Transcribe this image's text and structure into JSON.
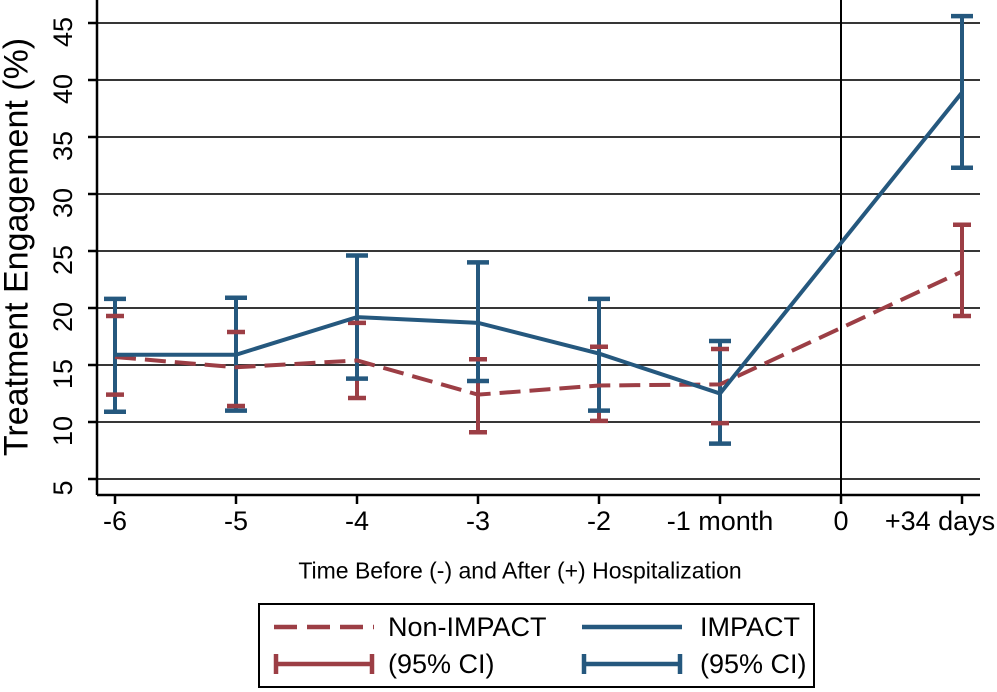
{
  "chart_data": {
    "type": "line",
    "title": "",
    "xlabel": "Time Before (-) and After (+) Hospitalization",
    "ylabel": "Treatment Engagement (%)",
    "x_tick_labels": [
      "-6",
      "-5",
      "-4",
      "-3",
      "-2",
      "-1 month",
      "0",
      "+34 days"
    ],
    "y_ticks": [
      5,
      10,
      15,
      20,
      25,
      30,
      35,
      40,
      45
    ],
    "ylim": [
      3.6,
      47
    ],
    "grid": "horizontal",
    "reference_line_x_index": 6,
    "colors": {
      "non_impact": "#9C3E45",
      "impact": "#25587E",
      "gridline": "#1a1a1a",
      "axis": "#000000"
    },
    "series": [
      {
        "name": "Non-IMPACT",
        "style": "dashed",
        "color": "#9C3E45",
        "x_indices": [
          0,
          1,
          2,
          3,
          4,
          5,
          7
        ],
        "values": [
          15.7,
          14.8,
          15.4,
          12.4,
          13.2,
          13.3,
          23.2
        ],
        "ci_low": [
          12.4,
          11.4,
          12.1,
          9.1,
          10.1,
          9.9,
          19.3
        ],
        "ci_high": [
          19.3,
          17.9,
          18.7,
          15.5,
          16.6,
          16.4,
          27.3
        ]
      },
      {
        "name": "IMPACT",
        "style": "solid",
        "color": "#25587E",
        "x_indices": [
          0,
          1,
          2,
          3,
          4,
          5,
          7
        ],
        "values": [
          15.9,
          15.9,
          19.2,
          18.7,
          16.0,
          12.5,
          38.9
        ],
        "ci_low": [
          10.9,
          11.0,
          13.8,
          13.6,
          11.0,
          8.1,
          32.3
        ],
        "ci_high": [
          20.8,
          20.9,
          24.6,
          24.0,
          20.8,
          17.1,
          45.6
        ]
      }
    ],
    "legend": {
      "position": "bottom",
      "entries": [
        {
          "label": "Non-IMPACT",
          "ci_label": "(95% CI)"
        },
        {
          "label": "IMPACT",
          "ci_label": "(95% CI)"
        }
      ]
    }
  }
}
